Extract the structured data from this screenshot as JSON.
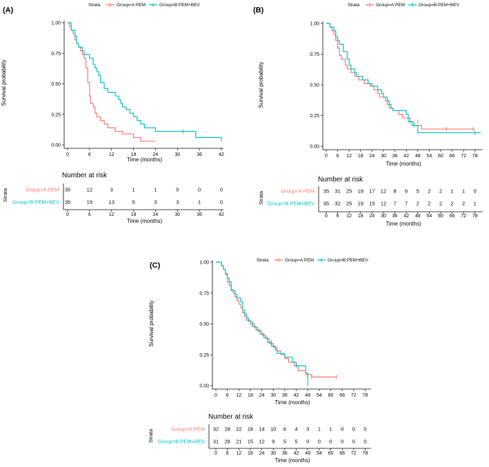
{
  "colors": {
    "pem": "#F8766D",
    "bev": "#00BFC4"
  },
  "chart_data": [
    {
      "panel": "(A)",
      "type": "line",
      "subtype": "kaplan-meier",
      "legend_title": "Strata",
      "legend": [
        "Group=A:PEM",
        "Group=B:PEM+BEV"
      ],
      "xlabel": "Time (months)",
      "ylabel": "Survival probability",
      "xlim": [
        0,
        42
      ],
      "xticks": [
        0,
        6,
        12,
        18,
        24,
        30,
        36,
        42
      ],
      "ylim": [
        0,
        1
      ],
      "yticks": [
        "0.00",
        "0.25",
        "0.50",
        "0.75",
        "1.00"
      ],
      "series": [
        {
          "name": "Group=A:PEM",
          "steps": [
            [
              0,
              1
            ],
            [
              0.5,
              0.97
            ],
            [
              1,
              0.94
            ],
            [
              1.5,
              0.91
            ],
            [
              2,
              0.86
            ],
            [
              2.5,
              0.83
            ],
            [
              3,
              0.8
            ],
            [
              3.5,
              0.77
            ],
            [
              4,
              0.74
            ],
            [
              4.5,
              0.71
            ],
            [
              5,
              0.63
            ],
            [
              5.5,
              0.51
            ],
            [
              6,
              0.4
            ],
            [
              6.3,
              0.34
            ],
            [
              7,
              0.31
            ],
            [
              7.5,
              0.26
            ],
            [
              8,
              0.23
            ],
            [
              9,
              0.2
            ],
            [
              10,
              0.17
            ],
            [
              11,
              0.14
            ],
            [
              13,
              0.11
            ],
            [
              15,
              0.09
            ],
            [
              18,
              0.06
            ],
            [
              20,
              0.03
            ],
            [
              24,
              0.03
            ]
          ],
          "censored": []
        },
        {
          "name": "Group=B:PEM+BEV",
          "steps": [
            [
              0,
              1
            ],
            [
              1,
              0.94
            ],
            [
              2,
              0.89
            ],
            [
              2.5,
              0.83
            ],
            [
              3,
              0.8
            ],
            [
              4,
              0.77
            ],
            [
              4.5,
              0.74
            ],
            [
              6,
              0.71
            ],
            [
              7,
              0.66
            ],
            [
              7.5,
              0.63
            ],
            [
              8,
              0.6
            ],
            [
              8.5,
              0.57
            ],
            [
              9,
              0.51
            ],
            [
              10,
              0.46
            ],
            [
              11,
              0.43
            ],
            [
              13,
              0.4
            ],
            [
              14,
              0.37
            ],
            [
              14.5,
              0.34
            ],
            [
              15,
              0.31
            ],
            [
              16,
              0.29
            ],
            [
              17,
              0.26
            ],
            [
              18,
              0.23
            ],
            [
              19,
              0.2
            ],
            [
              20,
              0.17
            ],
            [
              21,
              0.14
            ],
            [
              24,
              0.11
            ],
            [
              35,
              0.06
            ],
            [
              42,
              0.03
            ]
          ],
          "censored": [
            [
              31.5,
              0.11
            ]
          ]
        }
      ],
      "risk_table": {
        "title": "Number at risk",
        "strata_label": "Strata",
        "rows": [
          {
            "label": "Group=A:PEM",
            "values": [
              "35",
              "12",
              "3",
              "1",
              "1",
              "0",
              "0",
              "0"
            ]
          },
          {
            "label": "Group=B:PEM+BEV",
            "values": [
              "35",
              "19",
              "13",
              "5",
              "3",
              "3",
              "1",
              "0"
            ]
          }
        ]
      }
    },
    {
      "panel": "(B)",
      "type": "line",
      "subtype": "kaplan-meier",
      "legend_title": "Strata",
      "legend": [
        "Group=A:PEM",
        "Group=B:PEM+BEV"
      ],
      "xlabel": "Time (months)",
      "ylabel": "Survival probability",
      "xlim": [
        0,
        81
      ],
      "xticks": [
        0,
        6,
        12,
        18,
        24,
        30,
        36,
        42,
        48,
        54,
        60,
        66,
        72,
        78
      ],
      "ylim": [
        0,
        1
      ],
      "yticks": [
        "0.00",
        "0.25",
        "0.50",
        "0.75",
        "1.00"
      ],
      "series": [
        {
          "name": "Group=A:PEM",
          "steps": [
            [
              0,
              1
            ],
            [
              2,
              0.97
            ],
            [
              3,
              0.94
            ],
            [
              4,
              0.91
            ],
            [
              5,
              0.86
            ],
            [
              6,
              0.8
            ],
            [
              7,
              0.74
            ],
            [
              8,
              0.71
            ],
            [
              10,
              0.66
            ],
            [
              11,
              0.63
            ],
            [
              13,
              0.6
            ],
            [
              15,
              0.57
            ],
            [
              17,
              0.54
            ],
            [
              20,
              0.51
            ],
            [
              23,
              0.49
            ],
            [
              25,
              0.46
            ],
            [
              27,
              0.43
            ],
            [
              28,
              0.4
            ],
            [
              31,
              0.37
            ],
            [
              32,
              0.34
            ],
            [
              33,
              0.31
            ],
            [
              35,
              0.29
            ],
            [
              38,
              0.26
            ],
            [
              40,
              0.23
            ],
            [
              44,
              0.2
            ],
            [
              46,
              0.17
            ],
            [
              50,
              0.14
            ],
            [
              78,
              0.14
            ]
          ],
          "censored": [
            [
              48,
              0.2
            ],
            [
              63,
              0.14
            ],
            [
              77,
              0.14
            ]
          ]
        },
        {
          "name": "Group=B:PEM+BEV",
          "steps": [
            [
              0,
              1
            ],
            [
              2,
              0.97
            ],
            [
              4,
              0.94
            ],
            [
              5,
              0.89
            ],
            [
              6,
              0.86
            ],
            [
              7,
              0.83
            ],
            [
              9,
              0.77
            ],
            [
              11,
              0.71
            ],
            [
              12,
              0.66
            ],
            [
              13,
              0.63
            ],
            [
              15,
              0.6
            ],
            [
              16,
              0.57
            ],
            [
              19,
              0.54
            ],
            [
              22,
              0.51
            ],
            [
              24,
              0.49
            ],
            [
              27,
              0.46
            ],
            [
              29,
              0.43
            ],
            [
              30,
              0.4
            ],
            [
              32,
              0.37
            ],
            [
              33,
              0.34
            ],
            [
              34,
              0.31
            ],
            [
              35,
              0.29
            ],
            [
              42,
              0.26
            ],
            [
              43,
              0.2
            ],
            [
              45,
              0.17
            ],
            [
              48,
              0.11
            ],
            [
              81,
              0.11
            ]
          ],
          "censored": [
            [
              44,
              0.2
            ],
            [
              46,
              0.17
            ],
            [
              78,
              0.11
            ]
          ]
        }
      ],
      "risk_table": {
        "title": "Number at risk",
        "strata_label": "Strata",
        "rows": [
          {
            "label": "Group=A:PEM",
            "values": [
              "35",
              "31",
              "25",
              "19",
              "17",
              "12",
              "8",
              "6",
              "5",
              "2",
              "2",
              "1",
              "1",
              "0"
            ]
          },
          {
            "label": "Group=B:PEM+BEV",
            "values": [
              "35",
              "32",
              "25",
              "19",
              "15",
              "12",
              "7",
              "7",
              "2",
              "2",
              "2",
              "2",
              "2",
              "1"
            ]
          }
        ]
      }
    },
    {
      "panel": "(C)",
      "type": "line",
      "subtype": "kaplan-meier",
      "legend_title": "Strata",
      "legend": [
        "Group=A:PEM",
        "Group=B:PEM+BEV"
      ],
      "xlabel": "Time (months)",
      "ylabel": "Survival probability",
      "xlim": [
        0,
        80
      ],
      "xticks": [
        0,
        6,
        12,
        18,
        24,
        30,
        36,
        42,
        48,
        54,
        60,
        66,
        72,
        78
      ],
      "ylim": [
        0,
        1
      ],
      "yticks": [
        "0.00",
        "0.25",
        "0.50",
        "0.75",
        "1.00"
      ],
      "series": [
        {
          "name": "Group=A:PEM",
          "steps": [
            [
              0,
              1
            ],
            [
              3,
              0.97
            ],
            [
              4,
              0.94
            ],
            [
              5,
              0.91
            ],
            [
              6,
              0.84
            ],
            [
              7,
              0.81
            ],
            [
              8,
              0.78
            ],
            [
              9,
              0.75
            ],
            [
              10,
              0.72
            ],
            [
              11,
              0.69
            ],
            [
              12,
              0.66
            ],
            [
              13,
              0.63
            ],
            [
              14,
              0.59
            ],
            [
              15,
              0.56
            ],
            [
              16,
              0.53
            ],
            [
              18,
              0.5
            ],
            [
              20,
              0.47
            ],
            [
              22,
              0.44
            ],
            [
              24,
              0.41
            ],
            [
              26,
              0.38
            ],
            [
              28,
              0.34
            ],
            [
              30,
              0.31
            ],
            [
              32,
              0.28
            ],
            [
              34,
              0.25
            ],
            [
              36,
              0.22
            ],
            [
              38,
              0.19
            ],
            [
              41,
              0.16
            ],
            [
              43,
              0.12
            ],
            [
              47,
              0.09
            ],
            [
              50,
              0.07
            ],
            [
              63,
              0.07
            ]
          ],
          "censored": [
            [
              50,
              0.07
            ],
            [
              63,
              0.07
            ]
          ]
        },
        {
          "name": "Group=B:PEM+BEV",
          "steps": [
            [
              0,
              1
            ],
            [
              3,
              0.97
            ],
            [
              4,
              0.94
            ],
            [
              5,
              0.9
            ],
            [
              6,
              0.87
            ],
            [
              7,
              0.84
            ],
            [
              8,
              0.77
            ],
            [
              10,
              0.74
            ],
            [
              11,
              0.71
            ],
            [
              13,
              0.68
            ],
            [
              14,
              0.61
            ],
            [
              15,
              0.58
            ],
            [
              16,
              0.55
            ],
            [
              17,
              0.52
            ],
            [
              19,
              0.48
            ],
            [
              21,
              0.45
            ],
            [
              23,
              0.42
            ],
            [
              25,
              0.39
            ],
            [
              27,
              0.35
            ],
            [
              29,
              0.32
            ],
            [
              31,
              0.29
            ],
            [
              32,
              0.26
            ],
            [
              36,
              0.23
            ],
            [
              40,
              0.19
            ],
            [
              42,
              0.16
            ],
            [
              47,
              0.1
            ],
            [
              48,
              0.0
            ]
          ],
          "censored": [
            [
              29,
              0.35
            ],
            [
              42,
              0.16
            ]
          ]
        }
      ],
      "risk_table": {
        "title": "Number at risk",
        "strata_label": "Strata",
        "rows": [
          {
            "label": "Group=A:PEM",
            "values": [
              "32",
              "28",
              "22",
              "16",
              "14",
              "10",
              "6",
              "4",
              "3",
              "1",
              "1",
              "0",
              "0",
              "0"
            ]
          },
          {
            "label": "Group=B:PEM+BEV",
            "values": [
              "31",
              "28",
              "21",
              "15",
              "12",
              "9",
              "5",
              "5",
              "0",
              "0",
              "0",
              "0",
              "0",
              "0"
            ]
          }
        ]
      }
    }
  ]
}
